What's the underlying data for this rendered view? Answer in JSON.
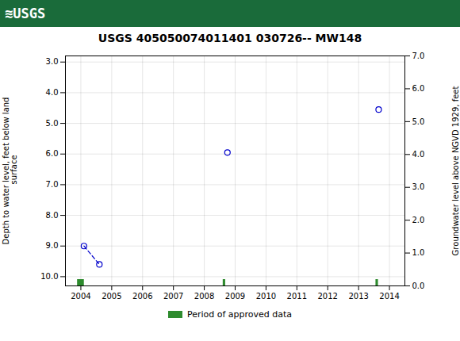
{
  "chart_data": {
    "type": "scatter",
    "title": "USGS 405050074011401 030726-- MW148",
    "header": {
      "text": "≋USGS",
      "color": "#1a6b3a"
    },
    "y_label": "Depth to water level, feet below land\n surface",
    "y2_label": "Groundwater level above NGVD 1929, feet",
    "xlim": [
      2003.5,
      2014.5
    ],
    "xticks": [
      2004,
      2005,
      2006,
      2007,
      2008,
      2009,
      2010,
      2011,
      2012,
      2013,
      2014
    ],
    "ylim": [
      10.3,
      2.8
    ],
    "yticks": [
      {
        "value": 3.0,
        "label": "3.0"
      },
      {
        "value": 4.0,
        "label": "4.0"
      },
      {
        "value": 5.0,
        "label": "5.0"
      },
      {
        "value": 6.0,
        "label": "6.0"
      },
      {
        "value": 7.0,
        "label": "7.0"
      },
      {
        "value": 8.0,
        "label": "8.0"
      },
      {
        "value": 9.0,
        "label": "9.0"
      },
      {
        "value": 10.0,
        "label": "10.0"
      }
    ],
    "y2lim": [
      0.0,
      7.0
    ],
    "y2ticks": [
      {
        "value": 0.0,
        "label": "0.0"
      },
      {
        "value": 1.0,
        "label": "1.0"
      },
      {
        "value": 2.0,
        "label": "2.0"
      },
      {
        "value": 3.0,
        "label": "3.0"
      },
      {
        "value": 4.0,
        "label": "4.0"
      },
      {
        "value": 5.0,
        "label": "5.0"
      },
      {
        "value": 6.0,
        "label": "6.0"
      },
      {
        "value": 7.0,
        "label": "7.0"
      }
    ],
    "grid": true,
    "legend": "bottom",
    "series": [
      {
        "type": "line",
        "line_style": "dashed",
        "color": "#0000cc",
        "x": [
          2004.1,
          2004.6
        ],
        "values": [
          9.0,
          9.6
        ]
      },
      {
        "type": "scatter",
        "marker": "open_circle",
        "color": "#0000cc",
        "x": [
          2004.1,
          2004.6,
          2008.75,
          2013.65
        ],
        "values": [
          9.0,
          9.6,
          5.95,
          4.55
        ]
      }
    ],
    "periods": {
      "name": "Period of approved data",
      "color": "#2e8b2e",
      "start": [
        2003.89,
        2008.61,
        2013.56
      ],
      "end": [
        2004.11,
        2008.69,
        2013.64
      ]
    }
  }
}
